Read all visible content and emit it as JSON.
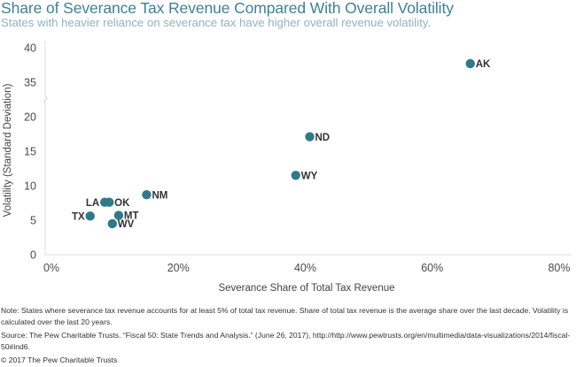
{
  "header": {
    "title": "Share of Severance Tax Revenue Compared With Overall Volatility",
    "subtitle": "States with heavier reliance on severance tax have higher overall revenue volatility."
  },
  "chart_data": {
    "type": "scatter",
    "title": "Share of Severance Tax Revenue Compared With Overall Volatility",
    "subtitle": "States with heavier reliance on severance tax have higher overall revenue volatility.",
    "xlabel": "Severance Share of Total Tax Revenue",
    "ylabel": "Volatility (Standard Deviation)",
    "xlim": [
      0,
      80
    ],
    "x_ticks": [
      0,
      20,
      40,
      60,
      80
    ],
    "x_tick_labels": [
      "0%",
      "20%",
      "40%",
      "60%",
      "80%"
    ],
    "y_ticks": [
      0,
      5,
      10,
      15,
      20,
      35,
      40
    ],
    "y_tick_labels": [
      "0",
      "5",
      "10",
      "15",
      "20",
      "35",
      "40"
    ],
    "y_axis_break": [
      20,
      35
    ],
    "grid": false,
    "color": "#2e7a8c",
    "points": [
      {
        "label": "AK",
        "x": 66.0,
        "y": 37.7,
        "label_side": "right"
      },
      {
        "label": "ND",
        "x": 40.7,
        "y": 17.1,
        "label_side": "right"
      },
      {
        "label": "WY",
        "x": 38.5,
        "y": 11.5,
        "label_side": "right"
      },
      {
        "label": "NM",
        "x": 15.0,
        "y": 8.7,
        "label_side": "right"
      },
      {
        "label": "LA",
        "x": 8.4,
        "y": 7.6,
        "label_side": "left"
      },
      {
        "label": "OK",
        "x": 9.1,
        "y": 7.6,
        "label_side": "right"
      },
      {
        "label": "TX",
        "x": 6.1,
        "y": 5.6,
        "label_side": "left"
      },
      {
        "label": "MT",
        "x": 10.6,
        "y": 5.7,
        "label_side": "right"
      },
      {
        "label": "WV",
        "x": 9.6,
        "y": 4.5,
        "label_side": "right"
      }
    ]
  },
  "footer": {
    "note": "Note: States where severance tax revenue accounts for at least 5% of total tax revenue. Share of total tax revenue is the average share over the last decade. Volatility is calculated over the last 20 years.",
    "source": "Source: The Pew Charitable Trusts. “Fiscal 50: State Trends and Analysis.” (June 26, 2017), http://http://www.pewtrusts.org/en/multimedia/data-visualizations/2014/fiscal-50#ind6.",
    "copyright": "© 2017 The Pew Charitable Trusts"
  }
}
